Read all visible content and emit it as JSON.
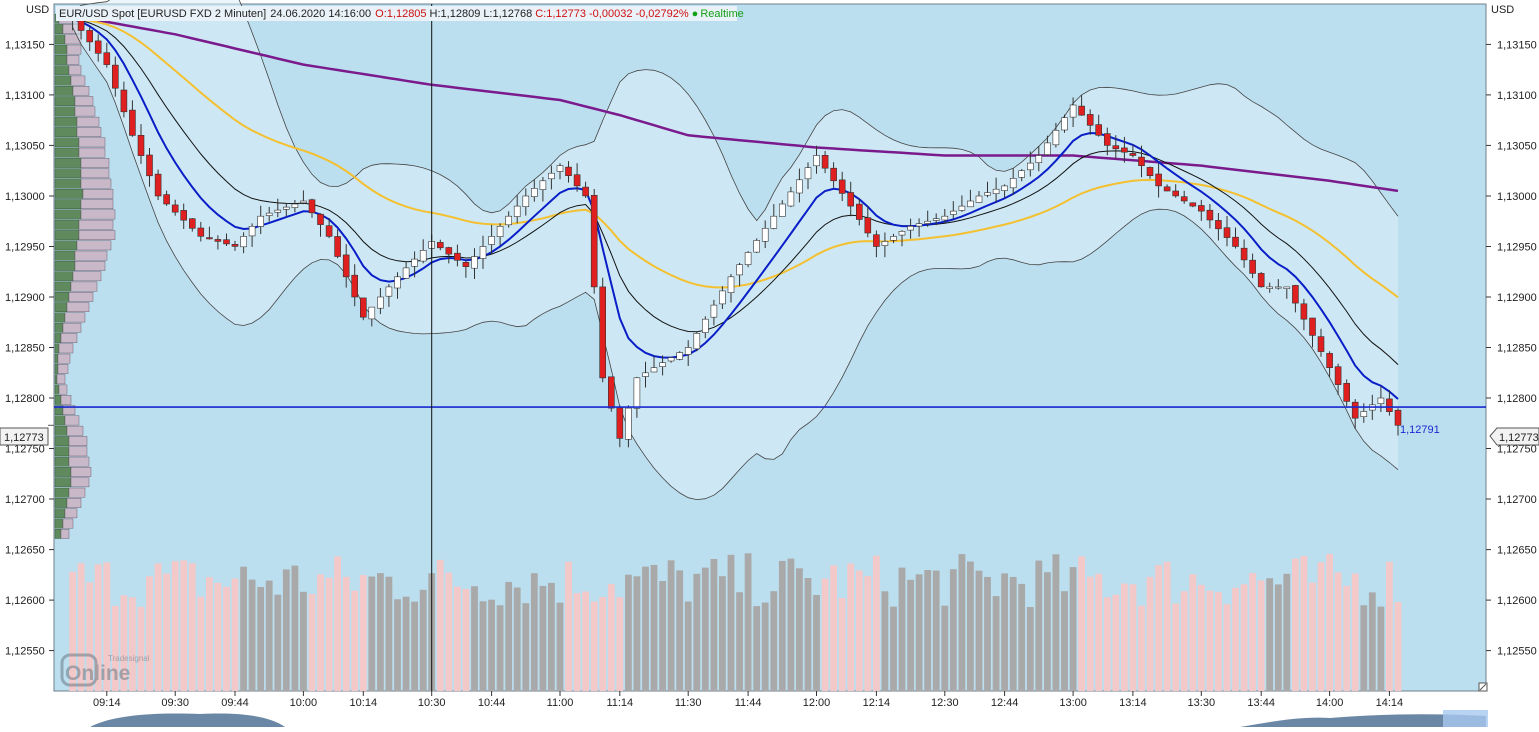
{
  "header": {
    "currency": "USD",
    "symbol": "EUR/USD Spot [EURUSD FXD 2 Minuten]",
    "datetime": "24.06.2020 14:16:00",
    "open": "O:1,12805",
    "high": "H:1,12809",
    "low": "L:1,12768",
    "close": "C:1,12773",
    "change": "-0,00032",
    "change_pct": "-0,02792%",
    "realtime": "Realtime"
  },
  "price_tags": {
    "left": "1,12773",
    "right": "1,12773",
    "line_label": "1,12791"
  },
  "watermark": {
    "brand": "Tradesignal",
    "logo_text": "Online"
  },
  "colors": {
    "background": "#bcdff0",
    "bull_candle": "#ffffff",
    "bear_candle": "#e02020",
    "ma_fast": "#0a1ec8",
    "ma_slow": "#f4c030",
    "ma_long": "#7a1a8c",
    "bollinger": "#444444",
    "volume_up": "#a9a9a9",
    "volume_down": "#f2c8c8",
    "profile_green": "#5e8a5e",
    "profile_pink": "#c8b8c8",
    "horizontal_line": "#1a2ad0"
  },
  "chart_data": {
    "type": "candlestick",
    "ylim": [
      1.1251,
      1.1319
    ],
    "y_ticks": [
      "1,13150",
      "1,13100",
      "1,13050",
      "1,13000",
      "1,12950",
      "1,12900",
      "1,12850",
      "1,12800",
      "1,12750",
      "1,12700",
      "1,12650",
      "1,12600",
      "1,12550"
    ],
    "x_ticks": [
      "09:14",
      "09:30",
      "09:44",
      "10:00",
      "10:14",
      "10:30",
      "10:44",
      "11:00",
      "11:14",
      "11:30",
      "11:44",
      "12:00",
      "12:14",
      "12:30",
      "12:44",
      "13:00",
      "13:14",
      "13:30",
      "13:44",
      "14:00",
      "14:14"
    ],
    "time_range": [
      "09:04",
      "14:16"
    ],
    "cursor_time": "10:30",
    "horizontal_line": 1.12791,
    "last_price": 1.12773,
    "close_anchors": [
      {
        "t": "09:06",
        "v": 1.13175
      },
      {
        "t": "09:14",
        "v": 1.1313
      },
      {
        "t": "09:20",
        "v": 1.1306
      },
      {
        "t": "09:26",
        "v": 1.13
      },
      {
        "t": "09:36",
        "v": 1.1296
      },
      {
        "t": "09:44",
        "v": 1.1295
      },
      {
        "t": "09:50",
        "v": 1.1298
      },
      {
        "t": "10:00",
        "v": 1.12995
      },
      {
        "t": "10:06",
        "v": 1.1296
      },
      {
        "t": "10:14",
        "v": 1.1288
      },
      {
        "t": "10:22",
        "v": 1.1292
      },
      {
        "t": "10:30",
        "v": 1.12955
      },
      {
        "t": "10:38",
        "v": 1.1293
      },
      {
        "t": "10:44",
        "v": 1.1296
      },
      {
        "t": "10:52",
        "v": 1.13
      },
      {
        "t": "11:00",
        "v": 1.1303
      },
      {
        "t": "11:06",
        "v": 1.13
      },
      {
        "t": "11:10",
        "v": 1.1282
      },
      {
        "t": "11:14",
        "v": 1.1276
      },
      {
        "t": "11:18",
        "v": 1.1282
      },
      {
        "t": "11:30",
        "v": 1.1285
      },
      {
        "t": "11:40",
        "v": 1.1292
      },
      {
        "t": "11:50",
        "v": 1.1298
      },
      {
        "t": "12:00",
        "v": 1.1304
      },
      {
        "t": "12:08",
        "v": 1.1299
      },
      {
        "t": "12:14",
        "v": 1.1295
      },
      {
        "t": "12:22",
        "v": 1.1297
      },
      {
        "t": "12:30",
        "v": 1.1298
      },
      {
        "t": "12:38",
        "v": 1.13
      },
      {
        "t": "12:44",
        "v": 1.1301
      },
      {
        "t": "12:52",
        "v": 1.1304
      },
      {
        "t": "13:00",
        "v": 1.1309
      },
      {
        "t": "13:08",
        "v": 1.1305
      },
      {
        "t": "13:14",
        "v": 1.1304
      },
      {
        "t": "13:20",
        "v": 1.1301
      },
      {
        "t": "13:30",
        "v": 1.12985
      },
      {
        "t": "13:38",
        "v": 1.1295
      },
      {
        "t": "13:44",
        "v": 1.1291
      },
      {
        "t": "13:50",
        "v": 1.1291
      },
      {
        "t": "14:00",
        "v": 1.1283
      },
      {
        "t": "14:06",
        "v": 1.1278
      },
      {
        "t": "14:12",
        "v": 1.128
      },
      {
        "t": "14:16",
        "v": 1.12773
      }
    ],
    "ma_long_anchors": [
      {
        "t": "09:04",
        "v": 1.1318
      },
      {
        "t": "09:30",
        "v": 1.1316
      },
      {
        "t": "10:00",
        "v": 1.1313
      },
      {
        "t": "10:30",
        "v": 1.1311
      },
      {
        "t": "11:00",
        "v": 1.13095
      },
      {
        "t": "11:14",
        "v": 1.1308
      },
      {
        "t": "11:30",
        "v": 1.1306
      },
      {
        "t": "12:00",
        "v": 1.13048
      },
      {
        "t": "12:30",
        "v": 1.1304
      },
      {
        "t": "13:00",
        "v": 1.1304
      },
      {
        "t": "13:30",
        "v": 1.1303
      },
      {
        "t": "14:00",
        "v": 1.13015
      },
      {
        "t": "14:16",
        "v": 1.13005
      }
    ],
    "volume_ylim": [
      0,
      1
    ],
    "profile": {
      "price_range": [
        1.1266,
        1.1318
      ],
      "green_width": [
        4,
        8,
        10,
        12,
        12,
        14,
        16,
        18,
        20,
        20,
        22,
        22,
        24,
        24,
        26,
        26,
        26,
        28,
        26,
        26,
        24,
        24,
        22,
        20,
        20,
        18,
        16,
        14,
        12,
        10,
        8,
        6,
        4,
        3,
        3,
        2,
        4,
        6,
        8,
        10,
        12,
        14,
        14,
        14,
        16,
        16,
        14,
        12,
        10,
        8,
        6
      ],
      "pink_width": [
        20,
        18,
        16,
        14,
        12,
        12,
        14,
        16,
        18,
        20,
        22,
        24,
        26,
        26,
        28,
        28,
        30,
        30,
        32,
        34,
        34,
        36,
        34,
        32,
        30,
        28,
        26,
        24,
        22,
        20,
        18,
        16,
        14,
        12,
        10,
        8,
        8,
        10,
        12,
        14,
        16,
        18,
        18,
        20,
        20,
        18,
        16,
        14,
        12,
        10,
        8
      ]
    }
  }
}
